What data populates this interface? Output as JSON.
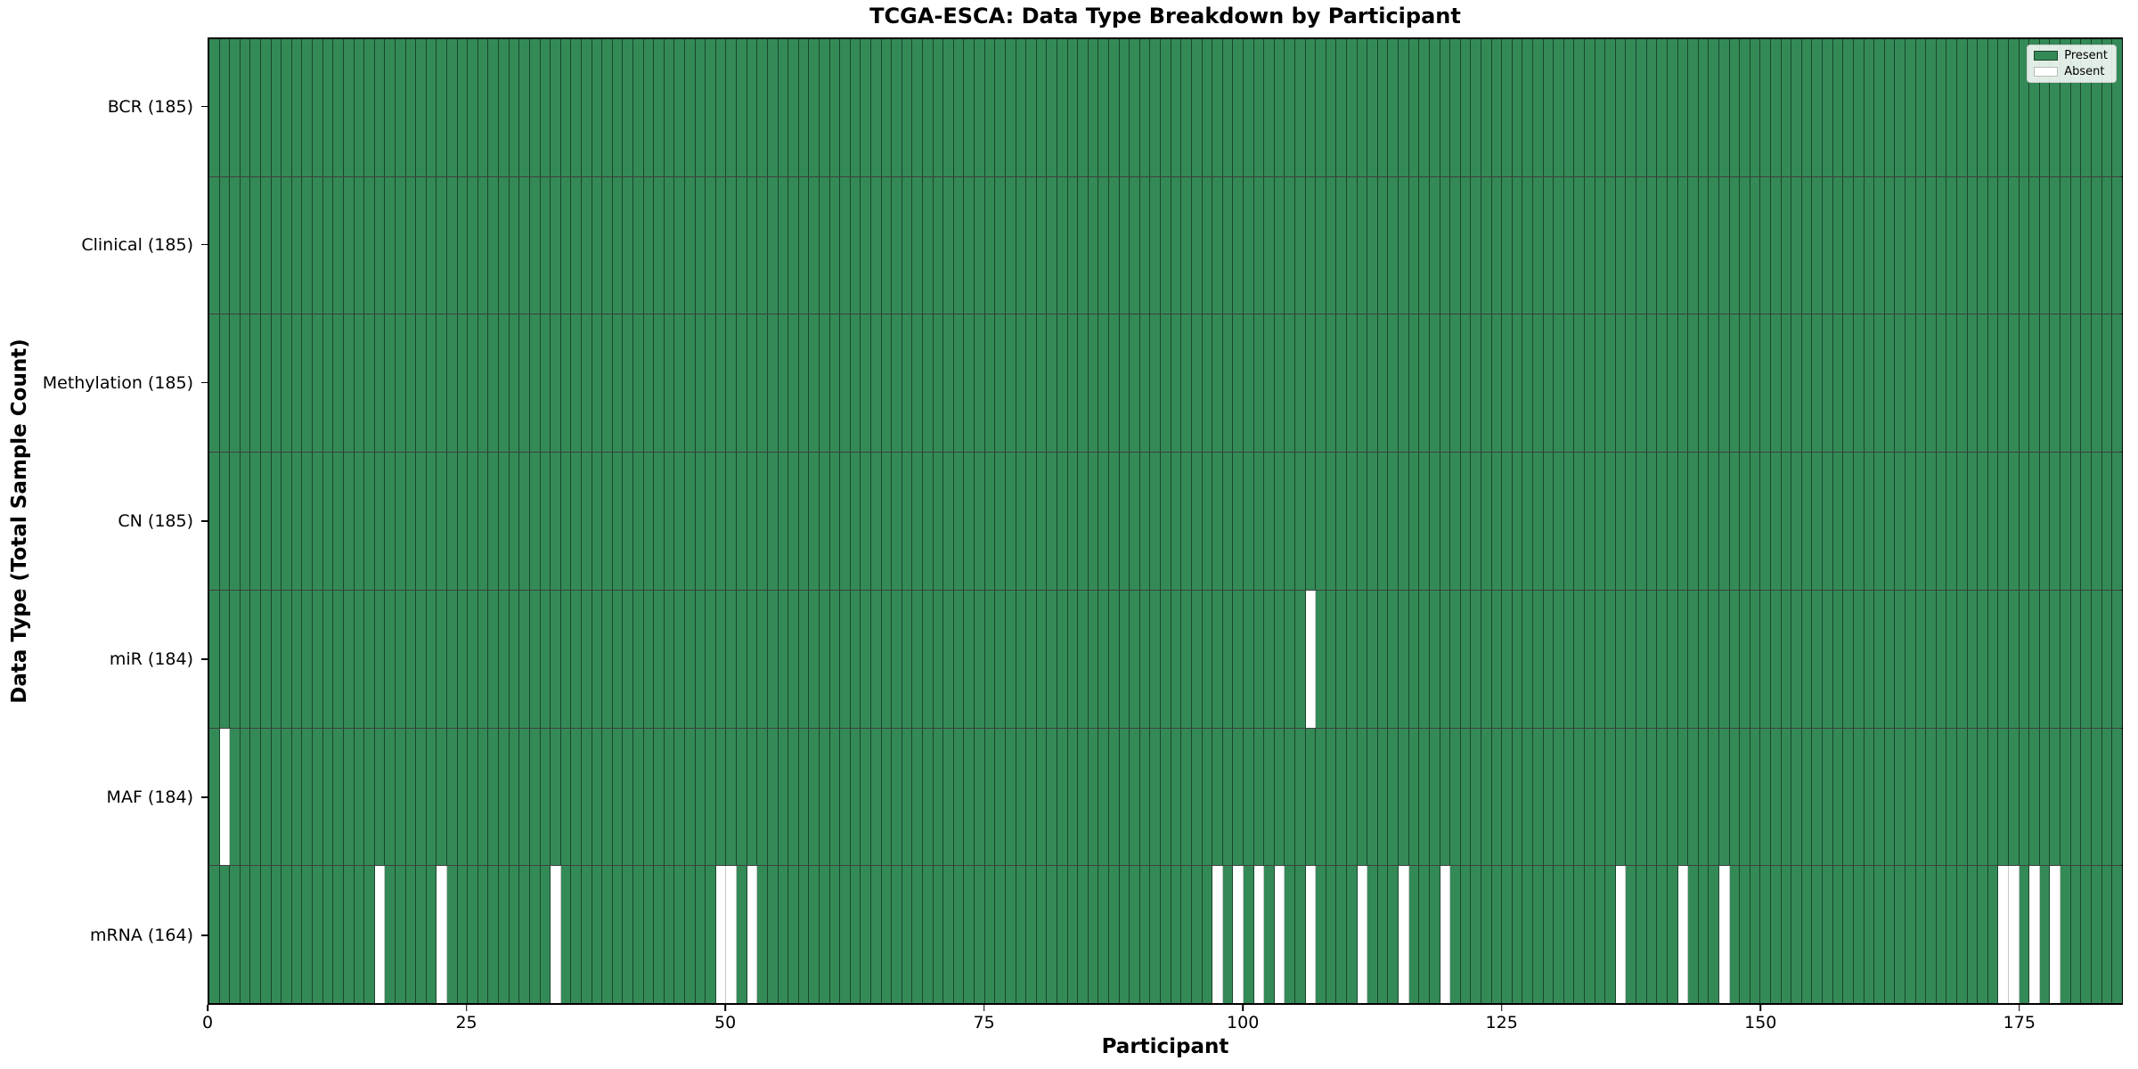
{
  "chart_data": {
    "type": "heatmap",
    "title": "TCGA-ESCA: Data Type Breakdown by Participant",
    "xlabel": "Participant",
    "ylabel": "Data Type (Total Sample Count)",
    "x_range": [
      0,
      185
    ],
    "n_participants": 185,
    "x_ticks": [
      0,
      25,
      50,
      75,
      100,
      125,
      150,
      175
    ],
    "grid": false,
    "rows": [
      {
        "name": "bcr",
        "label": "BCR (185)",
        "count": 185,
        "absent_participants": []
      },
      {
        "name": "clinical",
        "label": "Clinical (185)",
        "count": 185,
        "absent_participants": []
      },
      {
        "name": "methylation",
        "label": "Methylation (185)",
        "count": 185,
        "absent_participants": []
      },
      {
        "name": "cn",
        "label": "CN (185)",
        "count": 185,
        "absent_participants": []
      },
      {
        "name": "mir",
        "label": "miR (184)",
        "count": 184,
        "absent_participants": [
          106
        ]
      },
      {
        "name": "maf",
        "label": "MAF (184)",
        "count": 184,
        "absent_participants": [
          1
        ]
      },
      {
        "name": "mrna",
        "label": "mRNA (164)",
        "count": 164,
        "absent_participants": [
          16,
          22,
          33,
          49,
          50,
          52,
          97,
          99,
          101,
          103,
          106,
          111,
          115,
          119,
          136,
          142,
          146,
          173,
          174,
          176,
          178
        ]
      }
    ],
    "legend": {
      "position": "upper right",
      "entries": [
        {
          "label": "Present",
          "color": "#348a57"
        },
        {
          "label": "Absent",
          "color": "#ffffff"
        }
      ]
    },
    "colors": {
      "present": "#348a57",
      "absent": "#ffffff"
    }
  }
}
